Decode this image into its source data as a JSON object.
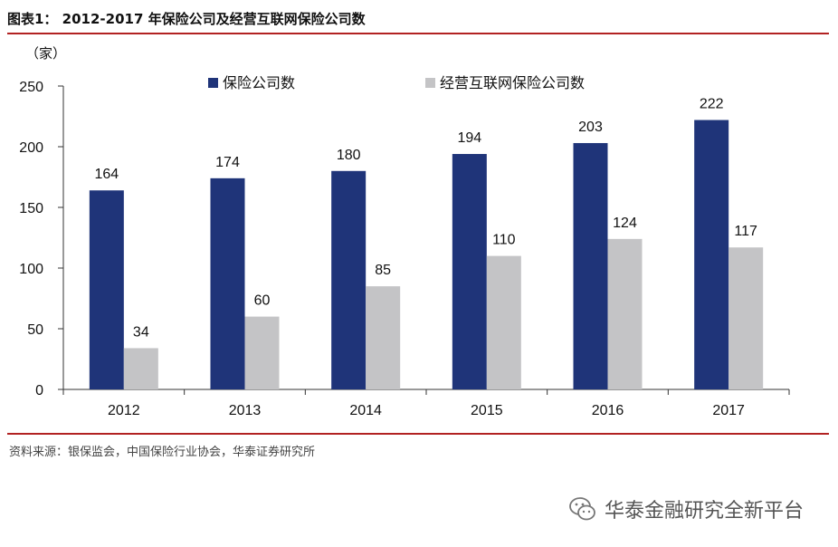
{
  "figure": {
    "title": "图表1：  2012-2017 年保险公司及经营互联网保险公司数",
    "source": "资料来源：银保监会，中国保险行业协会，华泰证券研究所",
    "watermark": "华泰金融研究全新平台"
  },
  "colors": {
    "series1": "#1f3479",
    "series2": "#c4c4c6",
    "rule": "#b22222"
  },
  "chart_data": {
    "type": "bar",
    "title": "",
    "xlabel": "",
    "ylabel": "（家）",
    "ylim": [
      0,
      250
    ],
    "yticks": [
      0,
      50,
      100,
      150,
      200,
      250
    ],
    "categories": [
      "2012",
      "2013",
      "2014",
      "2015",
      "2016",
      "2017"
    ],
    "legend_position": "top",
    "grid": false,
    "series": [
      {
        "name": "保险公司数",
        "values": [
          164,
          174,
          180,
          194,
          203,
          222
        ]
      },
      {
        "name": "经营互联网保险公司数",
        "values": [
          34,
          60,
          85,
          110,
          124,
          117
        ]
      }
    ]
  }
}
